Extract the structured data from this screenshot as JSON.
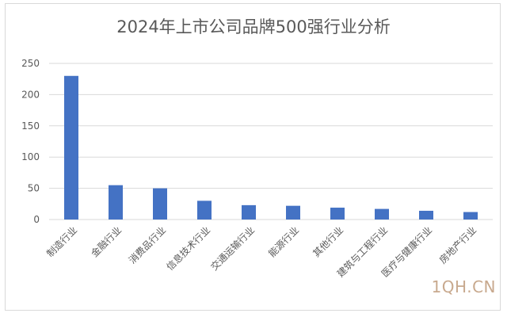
{
  "chart_data": {
    "type": "bar",
    "title": "2024年上市公司品牌500强行业分析",
    "categories": [
      "制造行业",
      "金融行业",
      "消费品行业",
      "信息技术行业",
      "交通运输行业",
      "能源行业",
      "其他行业",
      "建筑与工程行业",
      "医疗与健康行业",
      "房地产行业"
    ],
    "values": [
      230,
      55,
      50,
      30,
      23,
      22,
      19,
      17,
      14,
      12
    ],
    "yticks": [
      0,
      50,
      100,
      150,
      200,
      250
    ],
    "ylim": [
      0,
      250
    ],
    "grid": true,
    "legend": "none",
    "bar_color": "#4472c4",
    "grid_color": "#d9d9d9"
  },
  "watermark": "1QH.CN"
}
